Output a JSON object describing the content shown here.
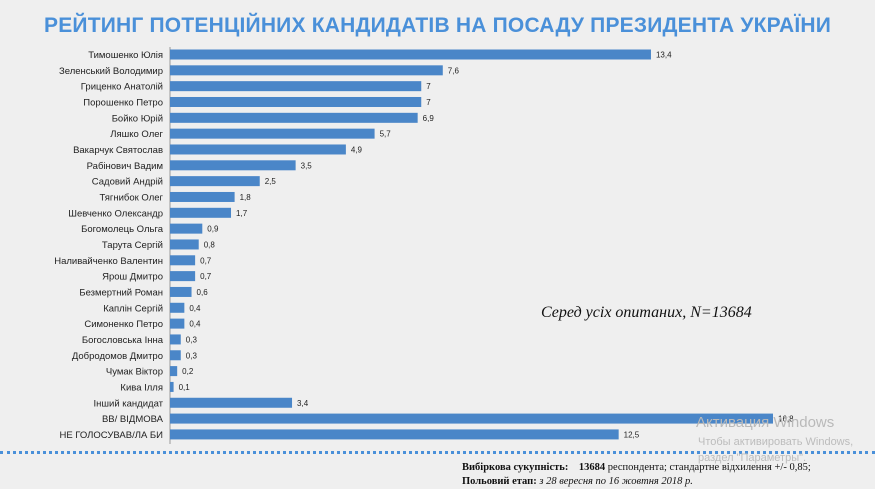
{
  "header": {
    "title": "РЕЙТИНГ ПОТЕНЦІЙНИХ КАНДИДАТІВ НА ПОСАДУ ПРЕЗИДЕНТА УКРАЇНИ"
  },
  "chart_data": {
    "type": "bar",
    "orientation": "horizontal",
    "title": "РЕЙТИНГ ПОТЕНЦІЙНИХ КАНДИДАТІВ НА ПОСАДУ ПРЕЗИДЕНТА УКРАЇНИ",
    "categories": [
      "Тимошенко Юлія",
      "Зеленський Володимир",
      "Гриценко Анатолій",
      "Порошенко Петро",
      "Бойко Юрій",
      "Ляшко Олег",
      "Вакарчук Святослав",
      "Рабінович Вадим",
      "Садовий Андрій",
      "Тягнибок Олег",
      "Шевченко Олександр",
      "Богомолець Ольга",
      "Тарута Сергій",
      "Наливайченко Валентин",
      "Ярош Дмитро",
      "Безмертний Роман",
      "Каплін Сергій",
      "Симоненко Петро",
      "Богословська Інна",
      "Добродомов Дмитро",
      "Чумак Віктор",
      "Кива Ілля",
      "Інший кандидат",
      "ВВ/ ВІДМОВА",
      "НЕ ГОЛОСУВАВ/ЛА БИ"
    ],
    "values": [
      13.4,
      7.6,
      7,
      7,
      6.9,
      5.7,
      4.9,
      3.5,
      2.5,
      1.8,
      1.7,
      0.9,
      0.8,
      0.7,
      0.7,
      0.6,
      0.4,
      0.4,
      0.3,
      0.3,
      0.2,
      0.1,
      3.4,
      16.8,
      12.5
    ],
    "value_labels": [
      "13,4",
      "7,6",
      "7",
      "7",
      "6,9",
      "5,7",
      "4,9",
      "3,5",
      "2,5",
      "1,8",
      "1,7",
      "0,9",
      "0,8",
      "0,7",
      "0,7",
      "0,6",
      "0,4",
      "0,4",
      "0,3",
      "0,3",
      "0,2",
      "0,1",
      "3,4",
      "16,8",
      "12,5"
    ],
    "bar_color": "#4a86c8",
    "xlim": [
      0,
      16.8
    ],
    "grid": false,
    "legend": "none",
    "annotation": "Серед усіх опитаних, N=13684"
  },
  "footer": {
    "sample_label": "Вибіркова сукупність:",
    "sample_value": "13684",
    "sample_rest": "респондента; стандартне відхилення +/- 0,85;",
    "stage_label": "Польовий етап:",
    "stage_value": "з 28 вересня по 16 жовтня 2018 р."
  },
  "watermark": {
    "line1": "Активация Windows",
    "line2": "Чтобы активировать Windows,",
    "line3": "раздел \"Параметры\"."
  }
}
